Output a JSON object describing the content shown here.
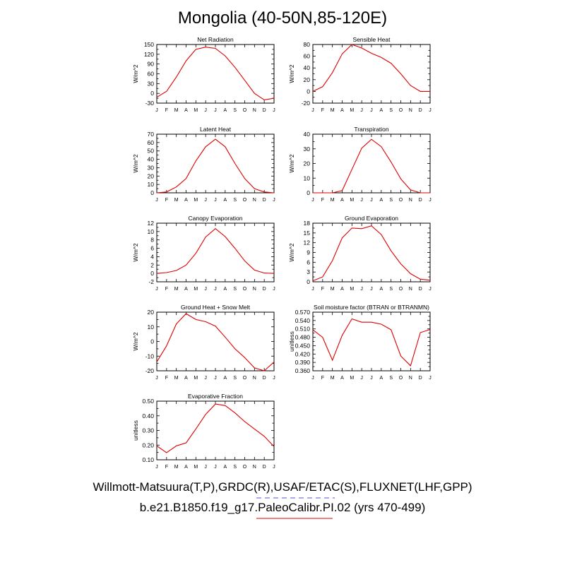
{
  "page_title": "Mongolia (40-50N,85-120E)",
  "legend": {
    "obs_label": "Willmott-Matsuura(T,P),GRDC(R),USAF/ETAC(S),FLUXNET(LHF,GPP)",
    "model_label": "b.e21.B1850.f19_g17.PaleoCalibr.PI.02 (yrs 470-499)",
    "obs_color": "#5555dd",
    "model_color": "#dd0000"
  },
  "chart_data": [
    {
      "type": "line",
      "title": "Net Radiation",
      "ylabel": "W/m^2",
      "ylim": [
        -30,
        150
      ],
      "yticks": [
        -30,
        -15,
        0,
        15,
        30,
        45,
        60,
        75,
        90,
        105,
        120,
        135,
        150
      ],
      "ytick_labels": [
        "-30",
        "",
        "0",
        "",
        "30",
        "",
        "60",
        "",
        "90",
        "",
        "120",
        "",
        "150"
      ],
      "x": [
        "J",
        "F",
        "M",
        "A",
        "M",
        "J",
        "J",
        "A",
        "S",
        "O",
        "N",
        "D",
        "J"
      ],
      "values": [
        -12,
        6,
        50,
        100,
        135,
        142,
        138,
        115,
        80,
        40,
        0,
        -20,
        -15
      ]
    },
    {
      "type": "line",
      "title": "Sensible Heat",
      "ylabel": "W/m^2",
      "ylim": [
        -20,
        80
      ],
      "yticks": [
        -20,
        -10,
        0,
        10,
        20,
        30,
        40,
        50,
        60,
        70,
        80
      ],
      "ytick_labels": [
        "-20",
        "",
        "0",
        "",
        "20",
        "",
        "40",
        "",
        "60",
        "",
        "80"
      ],
      "x": [
        "J",
        "F",
        "M",
        "A",
        "M",
        "J",
        "J",
        "A",
        "S",
        "O",
        "N",
        "D",
        "J"
      ],
      "values": [
        0,
        8,
        32,
        64,
        80,
        74,
        65,
        58,
        48,
        30,
        10,
        0,
        0
      ]
    },
    {
      "type": "line",
      "title": "Latent Heat",
      "ylabel": "W/m^2",
      "ylim": [
        0,
        70
      ],
      "yticks": [
        0,
        5,
        10,
        15,
        20,
        25,
        30,
        35,
        40,
        45,
        50,
        55,
        60,
        65,
        70
      ],
      "ytick_labels": [
        "0",
        "",
        "10",
        "",
        "20",
        "",
        "30",
        "",
        "40",
        "",
        "50",
        "",
        "60",
        "",
        "70"
      ],
      "x": [
        "J",
        "F",
        "M",
        "A",
        "M",
        "J",
        "J",
        "A",
        "S",
        "O",
        "N",
        "D",
        "J"
      ],
      "values": [
        0,
        1,
        7,
        17,
        38,
        55,
        64,
        55,
        35,
        17,
        5,
        1,
        0
      ]
    },
    {
      "type": "line",
      "title": "Transpiration",
      "ylabel": "W/m^2",
      "ylim": [
        0,
        40
      ],
      "yticks": [
        0,
        5,
        10,
        15,
        20,
        25,
        30,
        35,
        40
      ],
      "ytick_labels": [
        "0",
        "",
        "10",
        "",
        "20",
        "",
        "30",
        "",
        "40"
      ],
      "x": [
        "J",
        "F",
        "M",
        "A",
        "M",
        "J",
        "J",
        "A",
        "S",
        "O",
        "N",
        "D",
        "J"
      ],
      "values": [
        0,
        0,
        0,
        1.5,
        16,
        30.5,
        36.5,
        31.5,
        21,
        9.5,
        2,
        0,
        0
      ]
    },
    {
      "type": "line",
      "title": "Canopy Evaporation",
      "ylabel": "W/m^2",
      "ylim": [
        -2,
        12
      ],
      "yticks": [
        -2,
        -1,
        0,
        1,
        2,
        3,
        4,
        5,
        6,
        7,
        8,
        9,
        10,
        11,
        12
      ],
      "ytick_labels": [
        "-2",
        "",
        "0",
        "",
        "2",
        "",
        "4",
        "",
        "6",
        "",
        "8",
        "",
        "10",
        "",
        "12"
      ],
      "x": [
        "J",
        "F",
        "M",
        "A",
        "M",
        "J",
        "J",
        "A",
        "S",
        "O",
        "N",
        "D",
        "J"
      ],
      "values": [
        0,
        0.2,
        0.7,
        2,
        4.8,
        8.7,
        10.7,
        8.8,
        6,
        3,
        0.8,
        0.1,
        0
      ]
    },
    {
      "type": "line",
      "title": "Ground Evaporation",
      "ylabel": "W/m^2",
      "ylim": [
        0,
        18
      ],
      "yticks": [
        0,
        1.5,
        3,
        4.5,
        6,
        7.5,
        9,
        10.5,
        12,
        13.5,
        15,
        16.5,
        18
      ],
      "ytick_labels": [
        "0",
        "",
        "3",
        "",
        "6",
        "",
        "9",
        "",
        "12",
        "",
        "15",
        "",
        "18"
      ],
      "x": [
        "J",
        "F",
        "M",
        "A",
        "M",
        "J",
        "J",
        "A",
        "S",
        "O",
        "N",
        "D",
        "J"
      ],
      "values": [
        0.3,
        1.5,
        6.5,
        13.5,
        16.5,
        16.3,
        17.2,
        14.5,
        9.5,
        5.5,
        2.5,
        0.8,
        0.5
      ]
    },
    {
      "type": "line",
      "title": "Ground Heat + Snow Melt",
      "ylabel": "W/m^2",
      "ylim": [
        -20,
        20
      ],
      "yticks": [
        -20,
        -15,
        -10,
        -5,
        0,
        5,
        10,
        15,
        20
      ],
      "ytick_labels": [
        "-20",
        "",
        "-10",
        "",
        "0",
        "",
        "10",
        "",
        "20"
      ],
      "x": [
        "J",
        "F",
        "M",
        "A",
        "M",
        "J",
        "J",
        "A",
        "S",
        "O",
        "N",
        "D",
        "J"
      ],
      "values": [
        -14,
        -3,
        12,
        19,
        15,
        13.5,
        10.5,
        3,
        -5,
        -11,
        -18,
        -20,
        -14
      ]
    },
    {
      "type": "line",
      "title": "Soil moisture factor (BTRAN or BTRANMN)",
      "ylabel": "unitless",
      "ylim": [
        0.36,
        0.57
      ],
      "yticks": [
        0.36,
        0.375,
        0.39,
        0.405,
        0.42,
        0.435,
        0.45,
        0.465,
        0.48,
        0.495,
        0.51,
        0.525,
        0.54,
        0.555,
        0.57
      ],
      "ytick_labels": [
        "0.360",
        "",
        "0.390",
        "",
        "0.420",
        "",
        "0.450",
        "",
        "0.480",
        "",
        "0.510",
        "",
        "0.540",
        "",
        "0.570"
      ],
      "x": [
        "J",
        "F",
        "M",
        "A",
        "M",
        "J",
        "J",
        "A",
        "S",
        "O",
        "N",
        "D",
        "J"
      ],
      "values": [
        0.507,
        0.48,
        0.398,
        0.487,
        0.546,
        0.534,
        0.534,
        0.527,
        0.507,
        0.413,
        0.378,
        0.497,
        0.508
      ]
    },
    {
      "type": "line",
      "title": "Evaporative Fraction",
      "ylabel": "unitless",
      "ylim": [
        0.1,
        0.5
      ],
      "yticks": [
        0.1,
        0.15,
        0.2,
        0.25,
        0.3,
        0.35,
        0.4,
        0.45,
        0.5
      ],
      "ytick_labels": [
        "0.10",
        "",
        "0.20",
        "",
        "0.30",
        "",
        "0.40",
        "",
        "0.50"
      ],
      "x": [
        "J",
        "F",
        "M",
        "A",
        "M",
        "J",
        "J",
        "A",
        "S",
        "O",
        "N",
        "D",
        "J"
      ],
      "values": [
        0.195,
        0.148,
        0.195,
        0.215,
        0.31,
        0.41,
        0.48,
        0.47,
        0.42,
        0.36,
        0.31,
        0.26,
        0.19
      ]
    }
  ]
}
